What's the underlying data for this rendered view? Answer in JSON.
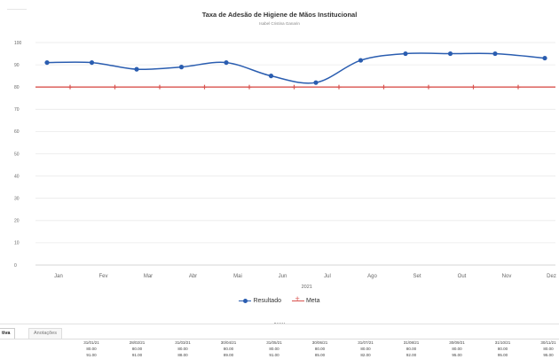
{
  "chart_data": {
    "type": "line",
    "title": "Taxa de Adesão de Higiene de Mãos Institucional",
    "subtitle": "Isabel Cristina Ganarin",
    "xlabel": "2021",
    "ylabel": "",
    "ylim": [
      0,
      100
    ],
    "yticks": [
      0,
      10,
      20,
      30,
      40,
      50,
      60,
      70,
      80,
      90,
      100
    ],
    "categories": [
      "Jan",
      "Fev",
      "Mar",
      "Abr",
      "Mai",
      "Jun",
      "Jul",
      "Ago",
      "Set",
      "Out",
      "Nov",
      "Dez"
    ],
    "grid": true,
    "legend_position": "bottom",
    "series": [
      {
        "name": "Resultado",
        "color": "#2a5db0",
        "marker": "circle",
        "smooth": true,
        "x": [
          "Jan",
          "Fev",
          "Mar",
          "Abr",
          "Mai",
          "Jun",
          "Jul",
          "Ago",
          "Set",
          "Out",
          "Nov",
          "Dez"
        ],
        "values": [
          91,
          91,
          88,
          89,
          91,
          85,
          82,
          92,
          95,
          95,
          95,
          93
        ]
      },
      {
        "name": "Meta",
        "color": "#d9534f",
        "marker": "plus",
        "smooth": false,
        "x": [
          "Jan",
          "Fev",
          "Mar",
          "Abr",
          "Mai",
          "Jun",
          "Jul",
          "Ago",
          "Set",
          "Out",
          "Nov",
          "Dez"
        ],
        "values": [
          80,
          80,
          80,
          80,
          80,
          80,
          80,
          80,
          80,
          80,
          80,
          80
        ]
      }
    ]
  },
  "top_tab": {
    "label": ""
  },
  "tabs": [
    {
      "label": "tiva",
      "active": true
    },
    {
      "label": "Anotações",
      "active": false
    }
  ],
  "table": {
    "dates": [
      "31/01/21",
      "28/02/21",
      "31/03/21",
      "30/04/21",
      "31/05/21",
      "30/06/21",
      "31/07/21",
      "31/08/21",
      "30/09/21",
      "31/10/21",
      "30/11/21"
    ],
    "meta_row": [
      "80.00",
      "80.00",
      "80.00",
      "80.00",
      "80.00",
      "80.00",
      "80.00",
      "80.00",
      "80.00",
      "80.00",
      "80.00"
    ],
    "result_row": [
      "91.00",
      "91.00",
      "88.00",
      "89.00",
      "91.00",
      "85.00",
      "82.00",
      "92.00",
      "95.00",
      "95.00",
      "95.00"
    ]
  }
}
